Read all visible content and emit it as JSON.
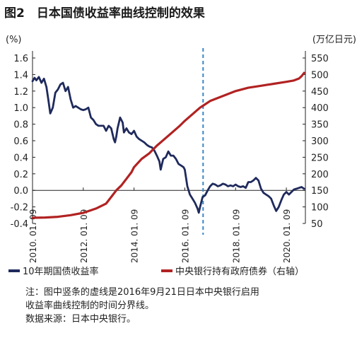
{
  "title": "图2　日本国债收益率曲线控制的效果",
  "note_lines": [
    "注：图中竖条的虚线是2016年9月21日日本中央银行启用",
    "收益率曲线控制的时间分界线。",
    "数据来源：日本中央银行。"
  ],
  "chart_data": {
    "type": "line",
    "title": "图2　日本国债收益率曲线控制的效果",
    "left_axis": {
      "unit": "(%)",
      "range": [
        -0.4,
        1.6
      ],
      "ticks": [
        1.6,
        1.4,
        1.2,
        1.0,
        0.8,
        0.6,
        0.4,
        0.2,
        0.0,
        -0.2,
        -0.4
      ],
      "tick_labels": [
        "1.6",
        "1.4",
        "1.2",
        "1.0",
        "0.8",
        "0.6",
        "0.4",
        "0.2",
        "0.0",
        "-0.2",
        "-0.4"
      ]
    },
    "right_axis": {
      "unit": "(万亿日元)",
      "range": [
        50,
        550
      ],
      "ticks": [
        550,
        500,
        450,
        400,
        350,
        300,
        250,
        200,
        150,
        100,
        50
      ],
      "tick_labels": [
        "550",
        "500",
        "450",
        "400",
        "350",
        "300",
        "250",
        "200",
        "150",
        "100",
        "50"
      ]
    },
    "x_axis": {
      "range": [
        2010.0,
        2020.75
      ],
      "ticks": [
        2010.0,
        2012.0,
        2014.0,
        2016.0,
        2018.0,
        2020.0
      ],
      "tick_labels": [
        "2010. 01. 09",
        "2012. 01. 09",
        "2014. 01. 09",
        "2016. 01. 09",
        "2018. 01. 09",
        "2020. 01. 09"
      ]
    },
    "ycc_start": 2016.72,
    "legend_position": "bottom",
    "series": [
      {
        "name": "10年期国债收益率",
        "axis": "left",
        "color": "#1f2a5c",
        "x": [
          2010.0,
          2010.08,
          2010.15,
          2010.25,
          2010.35,
          2010.45,
          2010.55,
          2010.62,
          2010.7,
          2010.8,
          2010.9,
          2011.0,
          2011.1,
          2011.2,
          2011.3,
          2011.4,
          2011.5,
          2011.6,
          2011.7,
          2011.8,
          2011.9,
          2012.0,
          2012.1,
          2012.2,
          2012.3,
          2012.4,
          2012.5,
          2012.6,
          2012.7,
          2012.8,
          2012.9,
          2013.0,
          2013.1,
          2013.2,
          2013.25,
          2013.3,
          2013.35,
          2013.45,
          2013.55,
          2013.6,
          2013.7,
          2013.8,
          2013.9,
          2014.0,
          2014.1,
          2014.2,
          2014.3,
          2014.4,
          2014.5,
          2014.6,
          2014.7,
          2014.8,
          2014.9,
          2015.0,
          2015.05,
          2015.15,
          2015.25,
          2015.35,
          2015.45,
          2015.55,
          2015.65,
          2015.75,
          2015.85,
          2015.95,
          2016.0,
          2016.1,
          2016.2,
          2016.3,
          2016.4,
          2016.5,
          2016.55,
          2016.6,
          2016.7,
          2016.8,
          2016.9,
          2017.0,
          2017.1,
          2017.2,
          2017.3,
          2017.4,
          2017.5,
          2017.6,
          2017.7,
          2017.8,
          2017.9,
          2018.0,
          2018.1,
          2018.2,
          2018.3,
          2018.4,
          2018.5,
          2018.6,
          2018.7,
          2018.8,
          2018.9,
          2019.0,
          2019.1,
          2019.2,
          2019.3,
          2019.4,
          2019.5,
          2019.6,
          2019.7,
          2019.8,
          2019.9,
          2020.0,
          2020.1,
          2020.2,
          2020.3,
          2020.4,
          2020.5,
          2020.6,
          2020.7
        ],
        "y": [
          1.32,
          1.36,
          1.33,
          1.37,
          1.3,
          1.35,
          1.25,
          1.1,
          0.93,
          1.0,
          1.18,
          1.22,
          1.28,
          1.3,
          1.2,
          1.25,
          1.1,
          1.0,
          1.02,
          1.0,
          0.98,
          0.97,
          0.98,
          1.0,
          0.88,
          0.85,
          0.8,
          0.78,
          0.78,
          0.78,
          0.72,
          0.78,
          0.75,
          0.62,
          0.58,
          0.65,
          0.75,
          0.88,
          0.82,
          0.7,
          0.75,
          0.7,
          0.68,
          0.72,
          0.65,
          0.62,
          0.6,
          0.58,
          0.55,
          0.53,
          0.52,
          0.48,
          0.42,
          0.35,
          0.25,
          0.38,
          0.4,
          0.47,
          0.42,
          0.42,
          0.38,
          0.32,
          0.3,
          0.28,
          0.25,
          0.05,
          -0.05,
          -0.1,
          -0.15,
          -0.22,
          -0.27,
          -0.2,
          -0.08,
          -0.06,
          0.0,
          0.05,
          0.08,
          0.07,
          0.05,
          0.06,
          0.08,
          0.07,
          0.05,
          0.06,
          0.05,
          0.07,
          0.05,
          0.04,
          0.05,
          0.03,
          0.1,
          0.1,
          0.12,
          0.15,
          0.12,
          0.02,
          -0.03,
          -0.05,
          -0.07,
          -0.1,
          -0.18,
          -0.25,
          -0.2,
          -0.12,
          -0.05,
          -0.02,
          -0.05,
          -0.02,
          0.01,
          0.02,
          0.03,
          0.04,
          0.02
        ]
      },
      {
        "name": "中央银行持有政府债券（右轴）",
        "axis": "right",
        "color": "#b22222",
        "x": [
          2010.0,
          2010.5,
          2011.0,
          2011.5,
          2012.0,
          2012.5,
          2012.9,
          2013.1,
          2013.3,
          2013.5,
          2013.7,
          2013.9,
          2014.0,
          2014.3,
          2014.6,
          2014.9,
          2015.2,
          2015.5,
          2015.8,
          2016.0,
          2016.3,
          2016.6,
          2016.8,
          2017.0,
          2017.5,
          2018.0,
          2018.5,
          2019.0,
          2019.5,
          2020.0,
          2020.3,
          2020.5,
          2020.6,
          2020.7
        ],
        "y": [
          67,
          68,
          70,
          75,
          82,
          95,
          110,
          130,
          150,
          165,
          185,
          205,
          220,
          245,
          262,
          285,
          305,
          325,
          345,
          360,
          380,
          400,
          410,
          420,
          435,
          450,
          460,
          466,
          472,
          478,
          482,
          488,
          495,
          505
        ]
      }
    ]
  }
}
